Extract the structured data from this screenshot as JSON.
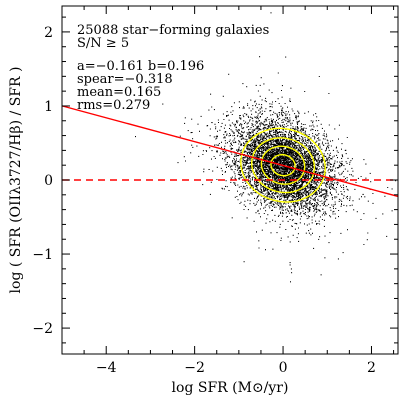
{
  "chart_data": {
    "type": "scatter",
    "xlabel": "log SFR (M⊙/yr)",
    "ylabel": "log ( SFR (OIIλ3727/Hβ) / SFR )",
    "xlim": [
      -5,
      2.6
    ],
    "ylim": [
      -2.35,
      2.35
    ],
    "x_ticks": [
      -4,
      -2,
      0,
      2
    ],
    "x_tick_labels": [
      "−4",
      "−2",
      "0",
      "2"
    ],
    "y_ticks": [
      -2,
      -1,
      0,
      1,
      2
    ],
    "y_tick_labels": [
      "−2",
      "−1",
      "0",
      "1",
      "2"
    ],
    "grid": false,
    "annotations": [
      "25088 star−forming galaxies",
      "S/N ≥ 5",
      "a=−0.161    b=0.196",
      "spear=−0.318",
      "mean=0.165",
      "rms=0.279"
    ],
    "points": {
      "count": 25088,
      "center": [
        0.0,
        0.2
      ],
      "spread": [
        0.55,
        0.28
      ],
      "slope": -0.161,
      "color": "#000000"
    },
    "fit_line": {
      "a": -0.161,
      "b": 0.196,
      "color": "#ff0000",
      "style": "solid"
    },
    "zero_line": {
      "y": 0,
      "color": "#ff0000",
      "style": "dashed"
    },
    "contours": {
      "color": "#ffff00",
      "levels": 4
    }
  }
}
